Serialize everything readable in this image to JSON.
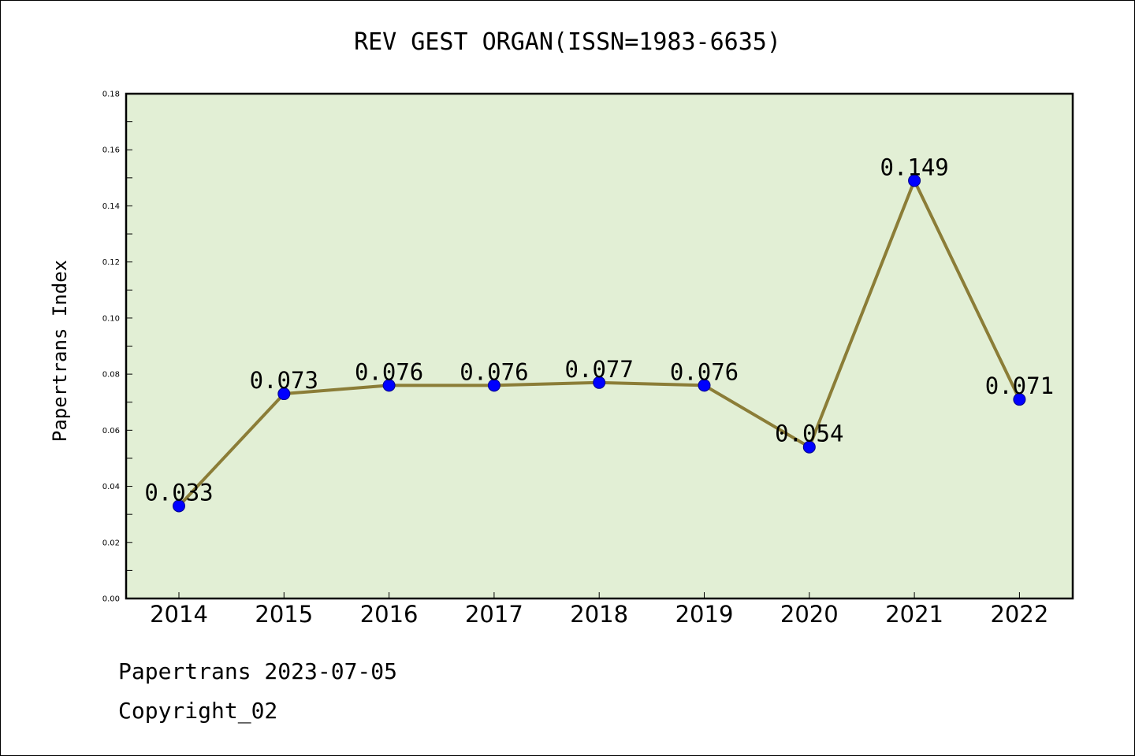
{
  "chart_data": {
    "type": "line",
    "title": "REV GEST ORGAN(ISSN=1983-6635)",
    "xlabel": "",
    "ylabel": "Papertrans Index",
    "categories": [
      "2014",
      "2015",
      "2016",
      "2017",
      "2018",
      "2019",
      "2020",
      "2021",
      "2022"
    ],
    "series": [
      {
        "values": [
          0.033,
          0.073,
          0.076,
          0.076,
          0.077,
          0.076,
          0.054,
          0.149,
          0.071
        ],
        "labels": [
          "0.033",
          "0.073",
          "0.076",
          "0.076",
          "0.077",
          "0.076",
          "0.054",
          "0.149",
          "0.071"
        ]
      }
    ],
    "ylim": [
      0,
      0.18
    ],
    "yticks": [
      "0.00",
      "0.02",
      "0.04",
      "0.06",
      "0.08",
      "0.10",
      "0.12",
      "0.14",
      "0.16",
      "0.18"
    ],
    "grid": false,
    "colors": {
      "plot_background": "#e2efd5",
      "line": "#8b7d37",
      "marker": "#0000ff"
    }
  },
  "footer": {
    "line1": "Papertrans 2023-07-05",
    "line2": "Copyright_02"
  }
}
